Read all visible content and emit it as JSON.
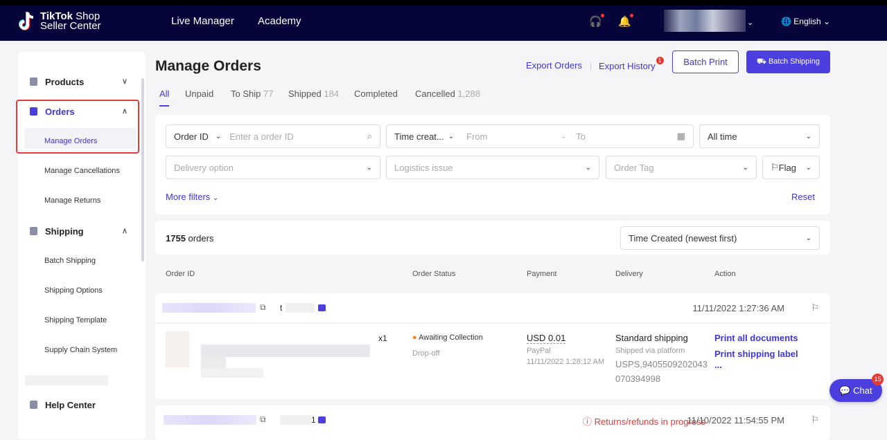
{
  "header": {
    "logo_line1_bold": "TikTok",
    "logo_line1": "Shop",
    "logo_line2": "Seller Center",
    "nav": [
      "Live Manager",
      "Academy"
    ],
    "language": "English"
  },
  "sidebar": {
    "groups": [
      {
        "label": "Products"
      },
      {
        "label": "Orders",
        "items": [
          "Manage Orders",
          "Manage Cancellations",
          "Manage Returns"
        ]
      },
      {
        "label": "Shipping",
        "items": [
          "Batch Shipping",
          "Shipping Options",
          "Shipping Template",
          "Supply Chain System"
        ]
      },
      {
        "label": "Help Center"
      }
    ]
  },
  "page": {
    "title": "Manage Orders",
    "export_orders": "Export Orders",
    "export_history": "Export History",
    "export_badge": "1",
    "batch_print": "Batch Print",
    "batch_shipping": "Batch Shipping"
  },
  "tabs": [
    {
      "label": "All",
      "count": ""
    },
    {
      "label": "Unpaid",
      "count": ""
    },
    {
      "label": "To Ship",
      "count": "77"
    },
    {
      "label": "Shipped",
      "count": "184"
    },
    {
      "label": "Completed",
      "count": ""
    },
    {
      "label": "Cancelled",
      "count": "1,288"
    }
  ],
  "filters": {
    "order_id_select": "Order ID",
    "order_id_placeholder": "Enter a order ID",
    "time_select": "Time creat...",
    "from": "From",
    "dash": "-",
    "to": "To",
    "time_range": "All time",
    "delivery": "Delivery option",
    "logistics": "Logistics issue",
    "order_tag": "Order Tag",
    "flag": "Flag",
    "more": "More filters",
    "reset": "Reset"
  },
  "orders_summary": {
    "count": "1755",
    "label": "orders",
    "sort": "Time Created (newest first)"
  },
  "columns": [
    "Order ID",
    "Order Status",
    "Payment",
    "Delivery",
    "Action"
  ],
  "orders": [
    {
      "time": "11/11/2022 1:27:36 AM",
      "buyer_initial": "t",
      "qty": "x1",
      "status": "Awaiting Collection",
      "status_sub": "Drop-off",
      "amount": "USD 0.01",
      "pay_method": "PayPal",
      "pay_time": "11/11/2022 1:28:12 AM",
      "delivery": "Standard shipping",
      "delivery_sub": "Shipped via platform",
      "tracking": "USPS,9405509202043070394998",
      "actions": [
        "Print all documents",
        "Print shipping label",
        "..."
      ]
    },
    {
      "time": "11/10/2022 11:54:55 PM",
      "buyer_initial": "1",
      "alert": "Returns/refunds in progress"
    }
  ],
  "chat": {
    "label": "Chat",
    "badge": "15"
  },
  "colors": {
    "accent": "#4b3fe0",
    "header": "#05053a",
    "alert": "#e53935",
    "status_dot": "#f5821f"
  }
}
